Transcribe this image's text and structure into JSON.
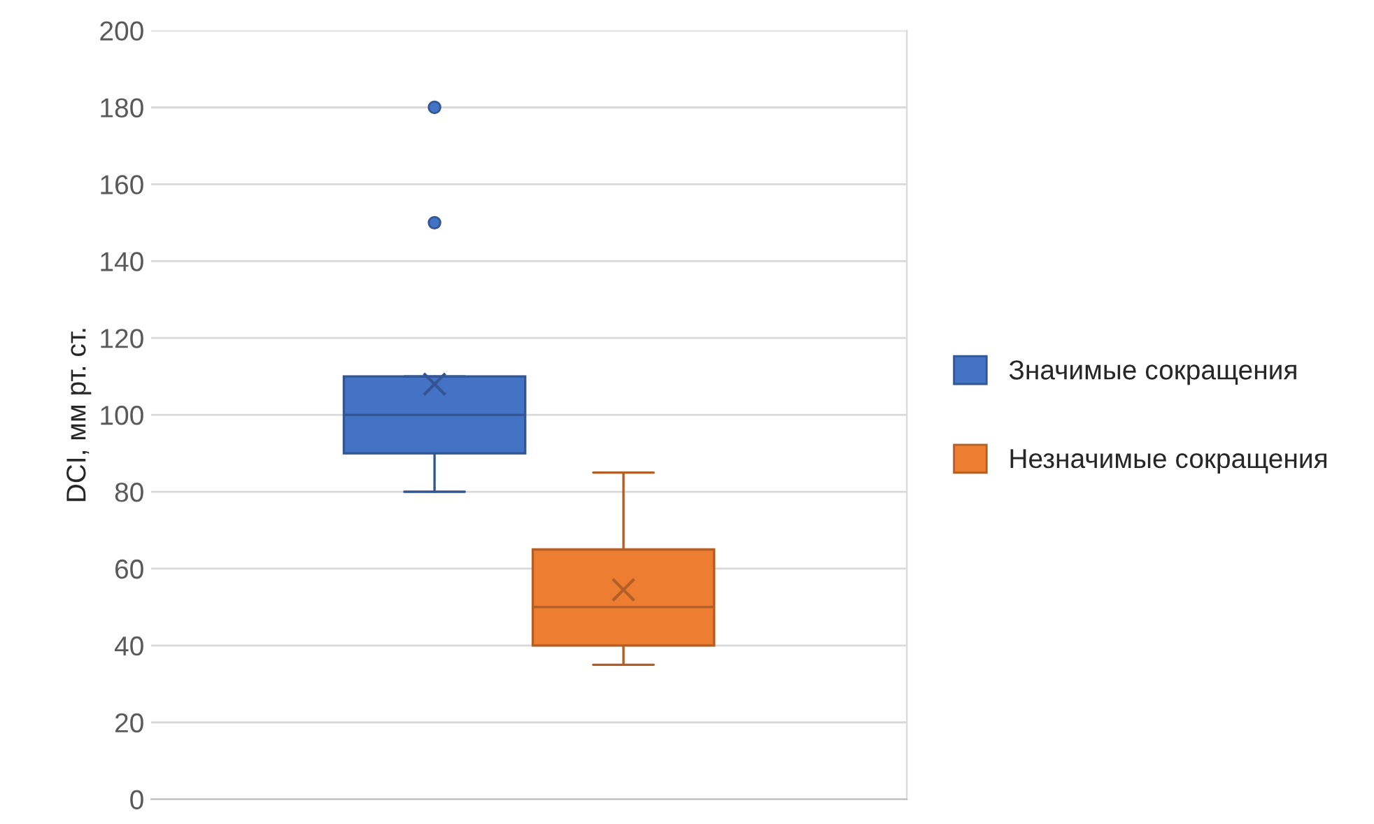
{
  "chart_data": {
    "type": "box",
    "ylabel": "DCI, мм рт. ст.",
    "categories": [
      null
    ],
    "series": [
      {
        "name": "Значимые сокращения",
        "color": "#4472c4",
        "boxes": [
          {
            "low": 80,
            "q1": 90,
            "median": 100,
            "q3": 110,
            "high": 110,
            "mean": 108,
            "outliers": [
              150,
              180
            ]
          }
        ]
      },
      {
        "name": "Незначимые сокращения",
        "color": "#ed7d31",
        "boxes": [
          {
            "low": 35,
            "q1": 40,
            "median": 50,
            "q3": 65,
            "high": 85,
            "mean": 54.5
          }
        ]
      }
    ],
    "ylim": [
      0,
      200
    ],
    "yticks": [
      0,
      20,
      40,
      60,
      80,
      100,
      120,
      140,
      160,
      180,
      200
    ],
    "grid": "y",
    "legend": "right"
  }
}
